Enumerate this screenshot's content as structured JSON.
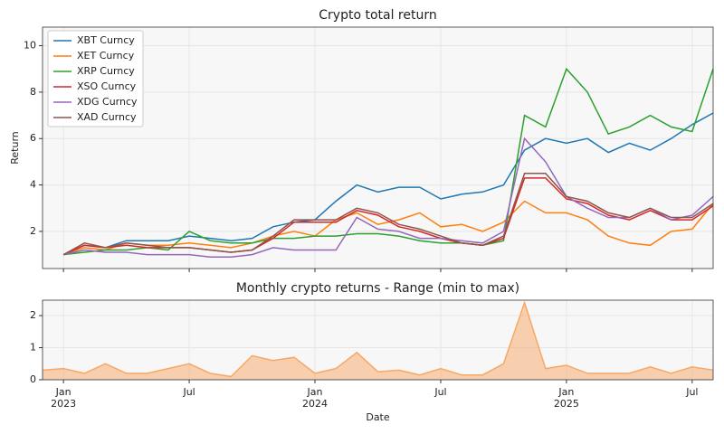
{
  "chart_data": [
    {
      "type": "line",
      "title": "Crypto total return",
      "ylabel": "Return",
      "x": [
        "2023-01",
        "2023-02",
        "2023-03",
        "2023-04",
        "2023-05",
        "2023-06",
        "2023-07",
        "2023-08",
        "2023-09",
        "2023-10",
        "2023-11",
        "2023-12",
        "2024-01",
        "2024-02",
        "2024-03",
        "2024-04",
        "2024-05",
        "2024-06",
        "2024-07",
        "2024-08",
        "2024-09",
        "2024-10",
        "2024-11",
        "2024-12",
        "2025-01",
        "2025-02",
        "2025-03",
        "2025-04",
        "2025-05",
        "2025-06",
        "2025-07",
        "2025-08"
      ],
      "series": [
        {
          "name": "XBT Curncy",
          "color": "#1f77b4",
          "values": [
            1.0,
            1.4,
            1.3,
            1.6,
            1.6,
            1.6,
            1.8,
            1.7,
            1.6,
            1.7,
            2.2,
            2.4,
            2.5,
            3.3,
            4.0,
            3.7,
            3.9,
            3.9,
            3.4,
            3.6,
            3.7,
            4.0,
            5.5,
            6.0,
            5.8,
            6.0,
            5.4,
            5.8,
            5.5,
            6.0,
            6.6,
            7.1
          ]
        },
        {
          "name": "XET Curncy",
          "color": "#ff7f0e",
          "values": [
            1.0,
            1.3,
            1.2,
            1.5,
            1.4,
            1.4,
            1.5,
            1.4,
            1.3,
            1.5,
            1.8,
            2.0,
            1.8,
            2.5,
            2.8,
            2.3,
            2.5,
            2.8,
            2.2,
            2.3,
            2.0,
            2.4,
            3.3,
            2.8,
            2.8,
            2.5,
            1.8,
            1.5,
            1.4,
            2.0,
            2.1,
            3.2
          ]
        },
        {
          "name": "XRP Curncy",
          "color": "#2ca02c",
          "values": [
            1.0,
            1.1,
            1.2,
            1.2,
            1.3,
            1.2,
            2.0,
            1.6,
            1.5,
            1.5,
            1.7,
            1.7,
            1.8,
            1.8,
            1.9,
            1.9,
            1.8,
            1.6,
            1.5,
            1.5,
            1.4,
            1.6,
            7.0,
            6.5,
            9.0,
            8.0,
            6.2,
            6.5,
            7.0,
            6.5,
            6.3,
            9.0
          ]
        },
        {
          "name": "XSO Curncy",
          "color": "#d62728",
          "values": [
            1.0,
            1.4,
            1.3,
            1.4,
            1.3,
            1.3,
            1.3,
            1.2,
            1.1,
            1.2,
            1.7,
            2.4,
            2.4,
            2.4,
            2.9,
            2.7,
            2.2,
            2.0,
            1.7,
            1.5,
            1.4,
            1.7,
            4.3,
            4.3,
            3.4,
            3.2,
            2.7,
            2.5,
            2.9,
            2.5,
            2.5,
            3.1
          ]
        },
        {
          "name": "XDG Curncy",
          "color": "#9467bd",
          "values": [
            1.0,
            1.2,
            1.1,
            1.1,
            1.0,
            1.0,
            1.0,
            0.9,
            0.9,
            1.0,
            1.3,
            1.2,
            1.2,
            1.2,
            2.6,
            2.1,
            2.0,
            1.7,
            1.7,
            1.6,
            1.5,
            2.0,
            6.0,
            5.0,
            3.5,
            3.0,
            2.6,
            2.6,
            3.0,
            2.5,
            2.7,
            3.5
          ]
        },
        {
          "name": "XAD Curncy",
          "color": "#8c564b",
          "values": [
            1.0,
            1.5,
            1.3,
            1.5,
            1.4,
            1.3,
            1.3,
            1.2,
            1.1,
            1.2,
            1.8,
            2.5,
            2.5,
            2.5,
            3.0,
            2.8,
            2.3,
            2.1,
            1.8,
            1.5,
            1.4,
            1.8,
            4.5,
            4.5,
            3.5,
            3.3,
            2.8,
            2.6,
            3.0,
            2.6,
            2.6,
            3.2
          ]
        }
      ],
      "xlim": [
        "2022-12",
        "2025-08"
      ],
      "ylim": [
        0.4,
        10.8
      ],
      "yticks": [
        2,
        4,
        6,
        8,
        10
      ],
      "grid": true,
      "legend": "upper left"
    },
    {
      "type": "area",
      "title": "Monthly crypto returns - Range (min to max)",
      "xlabel": "Date",
      "x": [
        "2022-12",
        "2023-01",
        "2023-02",
        "2023-03",
        "2023-04",
        "2023-05",
        "2023-06",
        "2023-07",
        "2023-08",
        "2023-09",
        "2023-10",
        "2023-11",
        "2023-12",
        "2024-01",
        "2024-02",
        "2024-03",
        "2024-04",
        "2024-05",
        "2024-06",
        "2024-07",
        "2024-08",
        "2024-09",
        "2024-10",
        "2024-11",
        "2024-12",
        "2025-01",
        "2025-02",
        "2025-03",
        "2025-04",
        "2025-05",
        "2025-06",
        "2025-07",
        "2025-08"
      ],
      "values": [
        0.3,
        0.35,
        0.2,
        0.5,
        0.2,
        0.2,
        0.35,
        0.5,
        0.2,
        0.1,
        0.75,
        0.6,
        0.7,
        0.2,
        0.35,
        0.85,
        0.25,
        0.3,
        0.15,
        0.35,
        0.15,
        0.15,
        0.5,
        2.4,
        0.35,
        0.45,
        0.2,
        0.2,
        0.2,
        0.4,
        0.2,
        0.4,
        0.3
      ],
      "color": "#f7a866",
      "xlim": [
        "2022-12",
        "2025-08"
      ],
      "ylim": [
        0,
        2.48
      ],
      "yticks": [
        0,
        1,
        2
      ],
      "xticks": [
        {
          "value": "2023-01",
          "label": "Jan 2023"
        },
        {
          "value": "2023-07",
          "label": "Jul"
        },
        {
          "value": "2024-01",
          "label": "Jan 2024"
        },
        {
          "value": "2024-07",
          "label": "Jul"
        },
        {
          "value": "2025-01",
          "label": "Jan 2025"
        },
        {
          "value": "2025-07",
          "label": "Jul"
        }
      ],
      "grid": true
    }
  ]
}
